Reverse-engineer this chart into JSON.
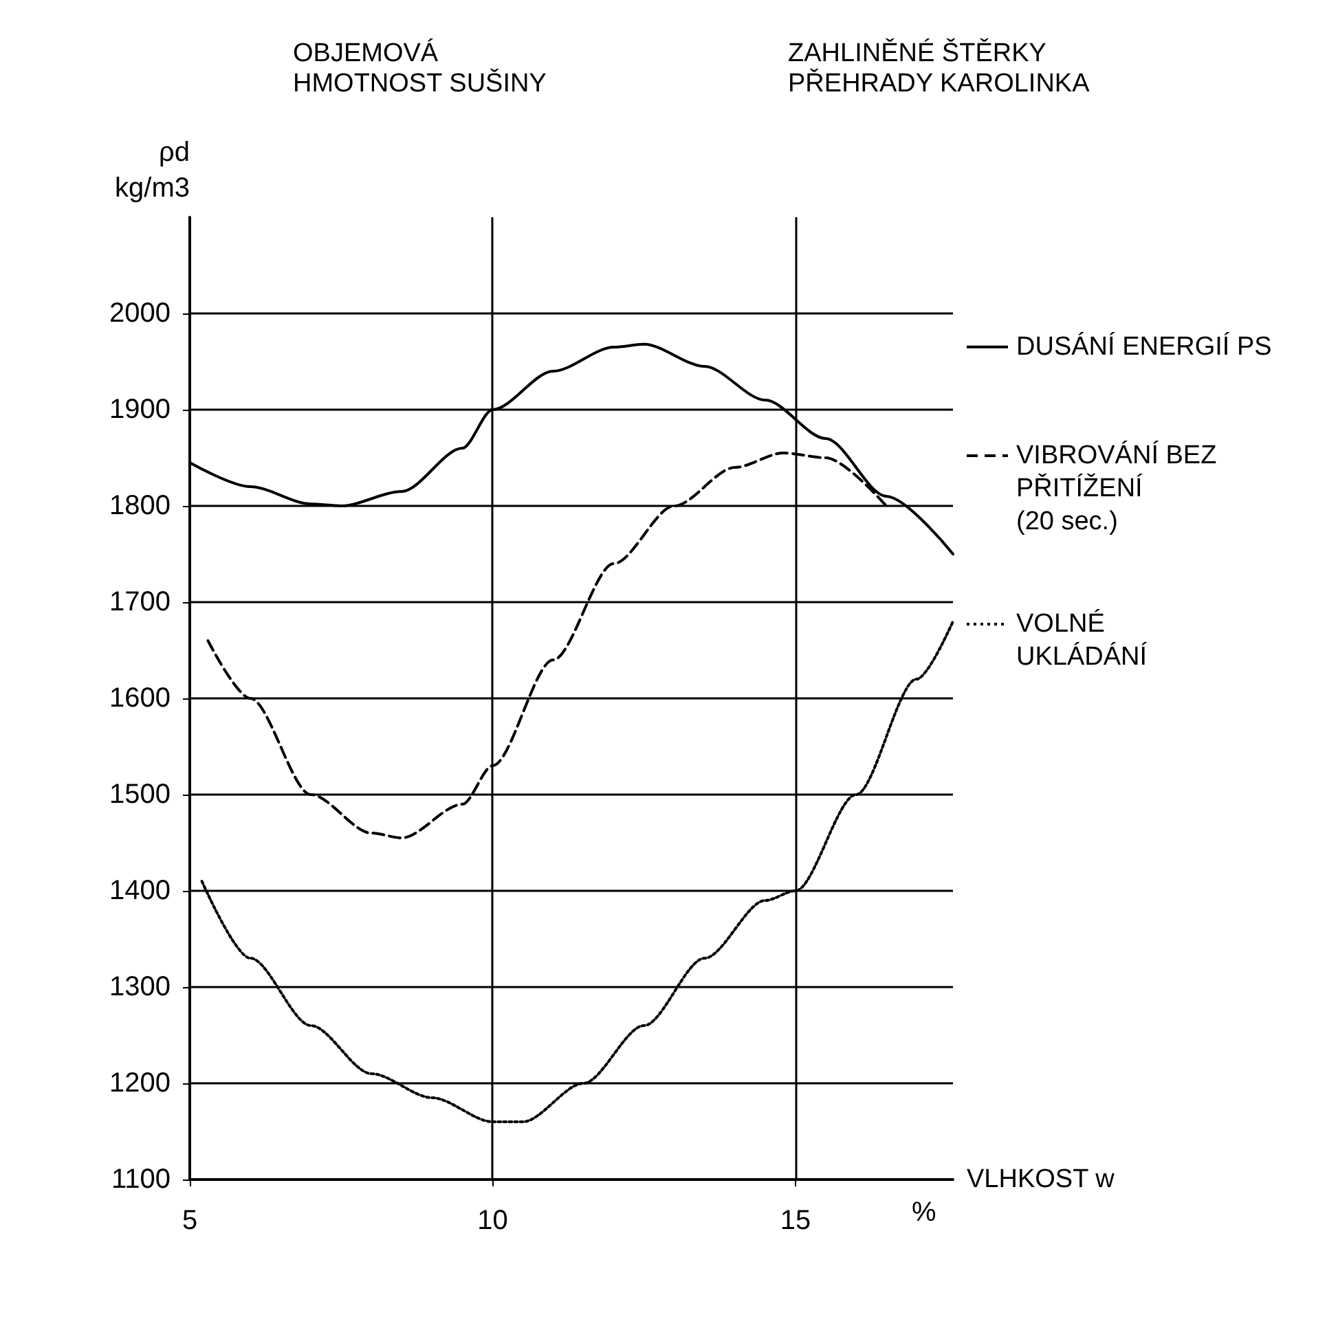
{
  "chart_data": {
    "type": "line",
    "title": "OBJEMOVÁ\nHMOTNOST SUŠINY",
    "subtitle": "ZAHLINĚNÉ ŠTĚRKY\nPŘEHRADY KAROLINKA",
    "xlabel": "VLHKOST w",
    "ylabel": "ρd\nkg/m3",
    "annotations": [
      "%"
    ],
    "xlim": [
      5,
      17.6
    ],
    "xticks": [
      5,
      10,
      15
    ],
    "ylim": [
      1100,
      2100
    ],
    "yticks": [
      1100,
      1200,
      1300,
      1400,
      1500,
      1600,
      1700,
      1800,
      1900,
      2000
    ],
    "grid": true,
    "legend": "right",
    "marker": "none",
    "series": [
      {
        "name": "DUSÁNÍ ENERGIÍ PS",
        "color": "#000000",
        "line_style": "solid",
        "x": [
          5,
          6,
          7,
          7.5,
          8.5,
          9.5,
          10,
          11,
          12,
          12.5,
          13.5,
          14.5,
          15.5,
          16.5,
          17.6
        ],
        "values": [
          1845,
          1820,
          1802,
          1800,
          1815,
          1860,
          1900,
          1940,
          1965,
          1968,
          1945,
          1910,
          1870,
          1810,
          1750
        ]
      },
      {
        "name": "VIBROVÁNÍ BEZ\nPŘITÍŽENÍ\n(20 sec.)",
        "color": "#000000",
        "line_style": "dashed",
        "x": [
          5.3,
          6,
          7,
          8,
          8.5,
          9.5,
          10,
          11,
          12,
          13,
          14,
          14.8,
          15.5,
          16.5
        ],
        "values": [
          1660,
          1600,
          1500,
          1460,
          1455,
          1490,
          1530,
          1640,
          1740,
          1800,
          1840,
          1855,
          1850,
          1800
        ]
      },
      {
        "name": "VOLNÉ\nUKLÁDÁNÍ",
        "color": "#000000",
        "line_style": "dotted",
        "x": [
          5.2,
          6,
          7,
          8,
          9,
          10,
          10.5,
          11.5,
          12.5,
          13.5,
          14.5,
          15,
          16,
          17,
          17.6
        ],
        "values": [
          1410,
          1330,
          1260,
          1210,
          1185,
          1160,
          1160,
          1200,
          1260,
          1330,
          1390,
          1400,
          1500,
          1620,
          1680
        ]
      }
    ]
  }
}
